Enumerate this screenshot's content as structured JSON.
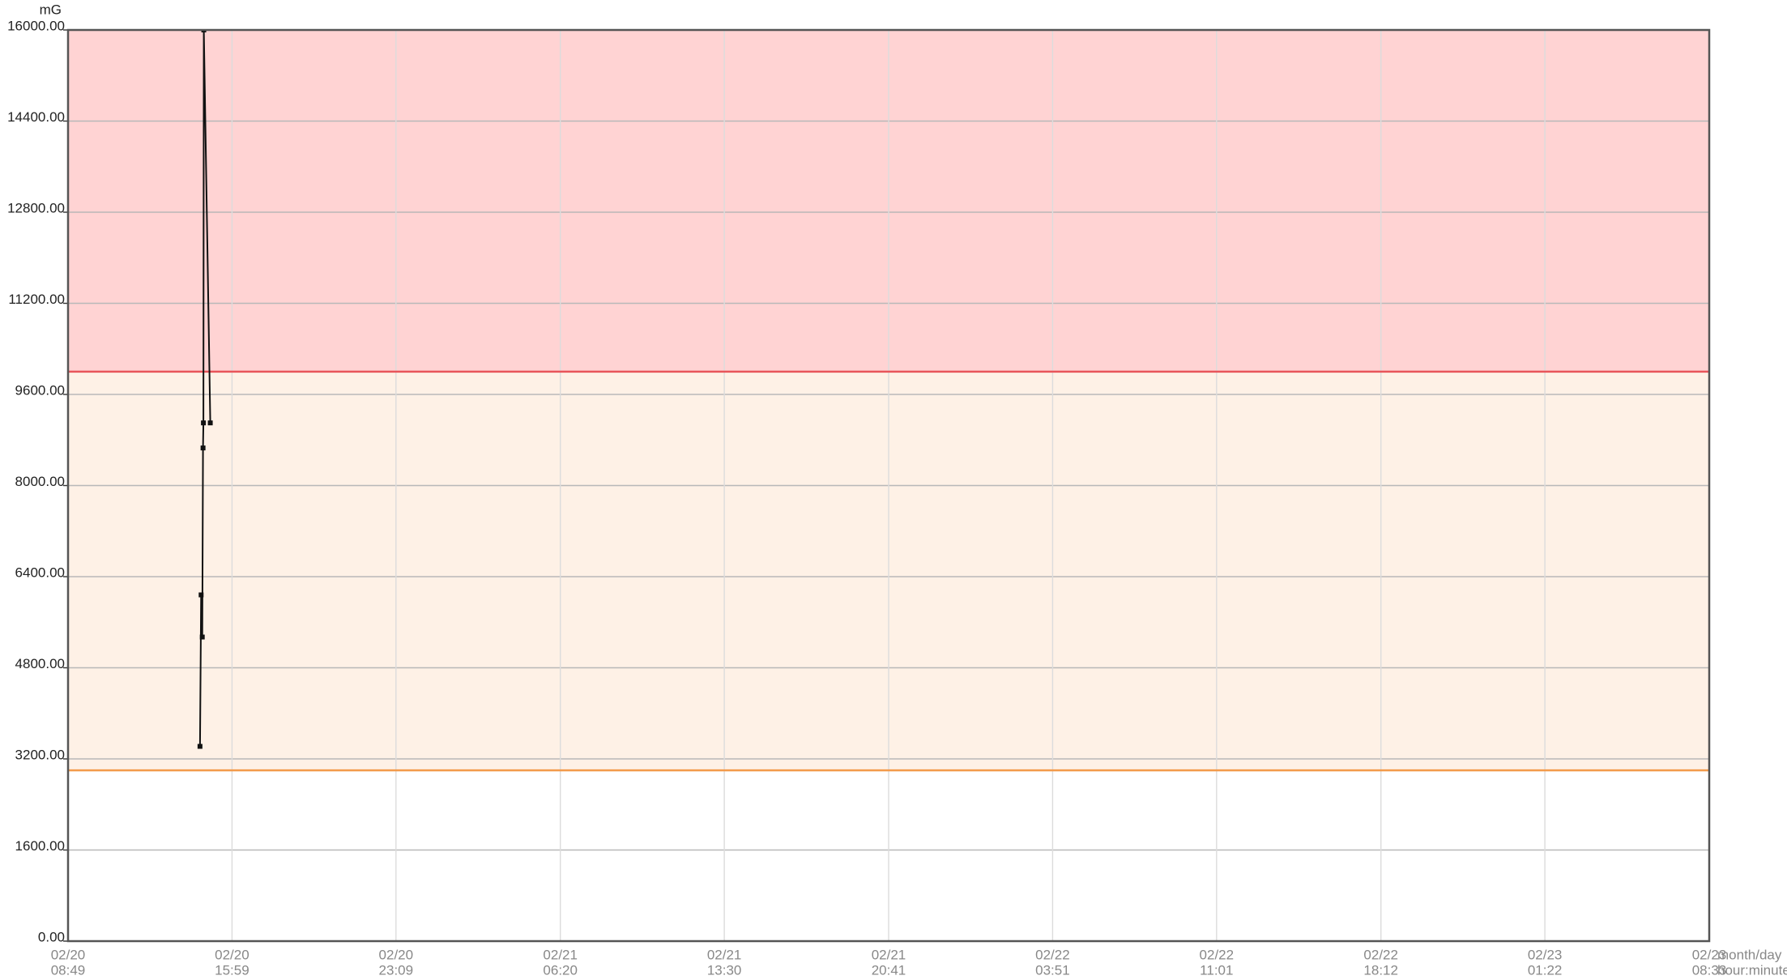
{
  "chart_data": {
    "type": "line",
    "y_unit": "mG",
    "x_axis_labels": [
      "month/day",
      "hour:minute"
    ],
    "ylim": [
      0,
      16000
    ],
    "yticks": [
      {
        "value": 0,
        "label": "0.00"
      },
      {
        "value": 1600,
        "label": "1600.00"
      },
      {
        "value": 3200,
        "label": "3200.00"
      },
      {
        "value": 4800,
        "label": "4800.00"
      },
      {
        "value": 6400,
        "label": "6400.00"
      },
      {
        "value": 8000,
        "label": "8000.00"
      },
      {
        "value": 9600,
        "label": "9600.00"
      },
      {
        "value": 11200,
        "label": "11200.00"
      },
      {
        "value": 12800,
        "label": "12800.00"
      },
      {
        "value": 14400,
        "label": "14400.00"
      },
      {
        "value": 16000,
        "label": "16000.00"
      }
    ],
    "xlim": [
      "02/20 08:49",
      "02/23 08:33"
    ],
    "xticks": [
      {
        "date": "02/20",
        "time": "08:49"
      },
      {
        "date": "02/20",
        "time": "15:59"
      },
      {
        "date": "02/20",
        "time": "23:09"
      },
      {
        "date": "02/21",
        "time": "06:20"
      },
      {
        "date": "02/21",
        "time": "13:30"
      },
      {
        "date": "02/21",
        "time": "20:41"
      },
      {
        "date": "02/22",
        "time": "03:51"
      },
      {
        "date": "02/22",
        "time": "11:01"
      },
      {
        "date": "02/22",
        "time": "18:12"
      },
      {
        "date": "02/23",
        "time": "01:22"
      },
      {
        "date": "02/23",
        "time": "08:33"
      }
    ],
    "grid": true,
    "thresholds": [
      {
        "value": 3000,
        "color": "#f39a4a",
        "fill": "#fef1e6"
      },
      {
        "value": 10000,
        "color": "#e8555a",
        "fill": "#ffd3d3"
      }
    ],
    "x": [
      "02/20 14:35",
      "02/20 14:38",
      "02/20 14:41",
      "02/20 14:43",
      "02/20 14:44",
      "02/20 14:45",
      "02/20 15:02"
    ],
    "series": [
      {
        "color": "#111111",
        "values": [
          3420,
          6080,
          5340,
          8660,
          9100,
          16000,
          9100
        ]
      }
    ]
  }
}
